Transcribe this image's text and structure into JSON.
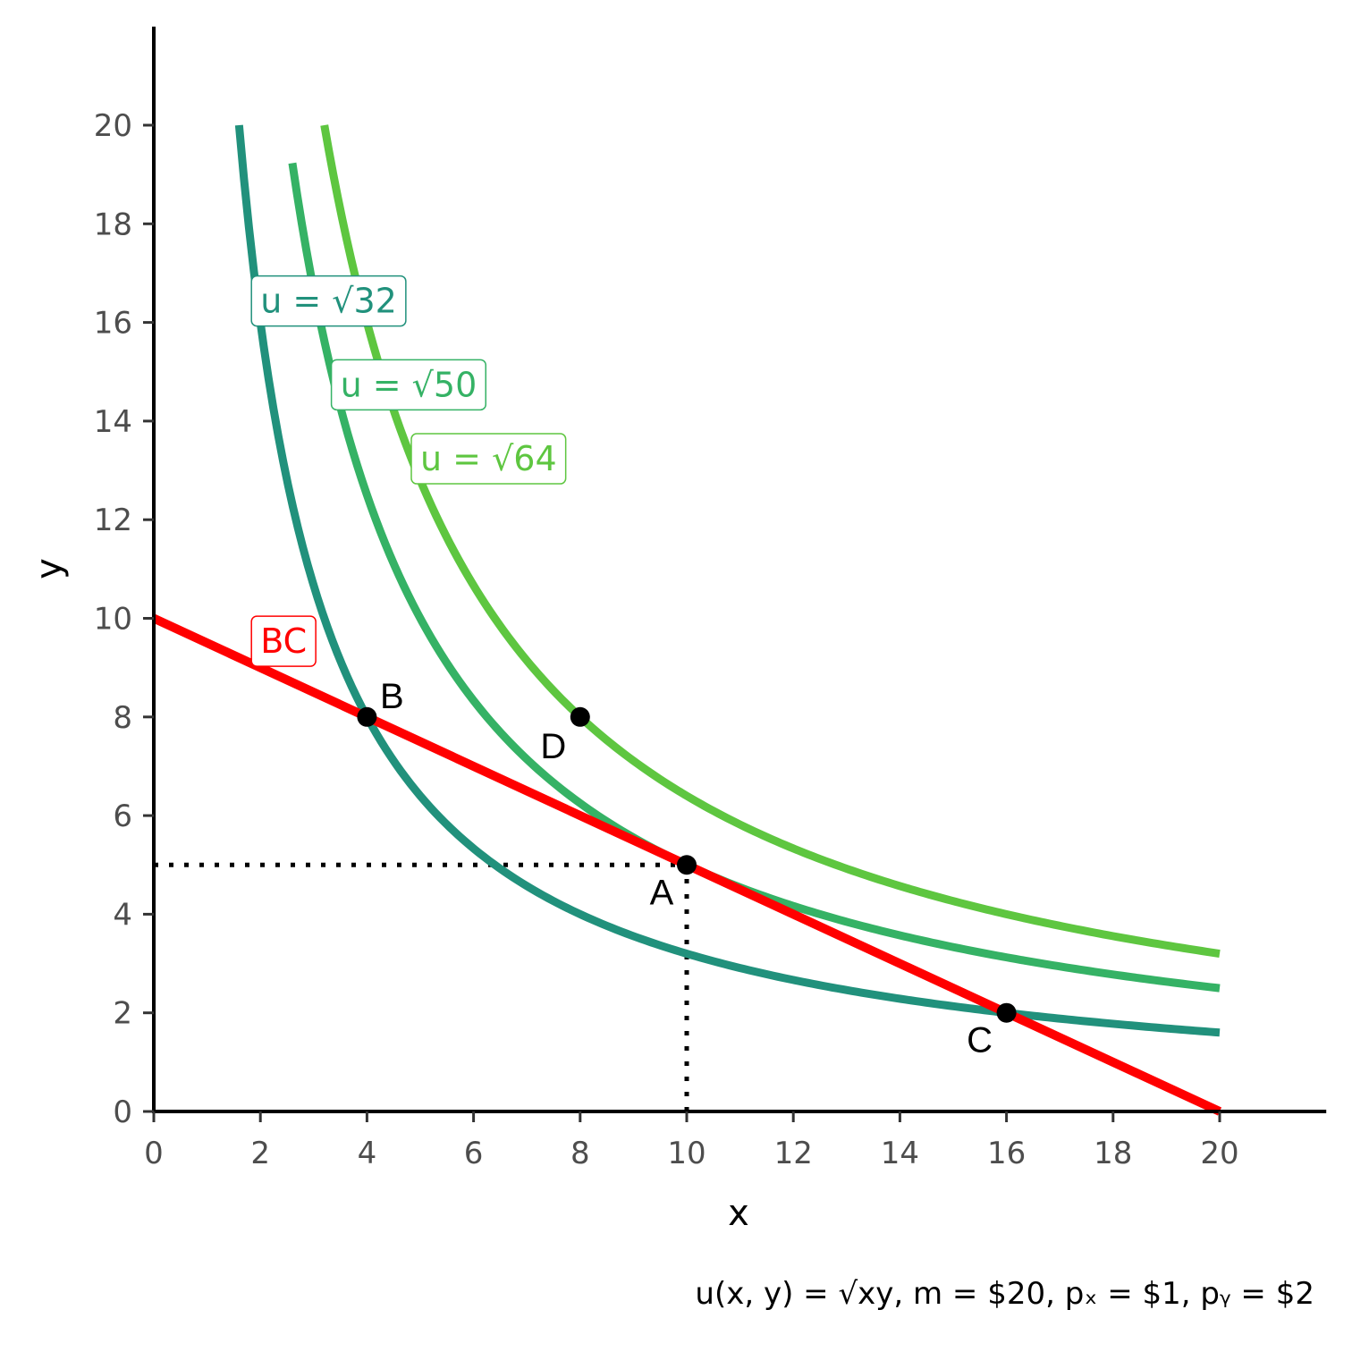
{
  "chart_data": {
    "type": "line",
    "title": "",
    "xlabel": "x",
    "ylabel": "y",
    "xlim": [
      0,
      22
    ],
    "ylim": [
      0,
      22
    ],
    "x_ticks": [
      0,
      2,
      4,
      6,
      8,
      10,
      12,
      14,
      16,
      18,
      20
    ],
    "y_ticks": [
      0,
      2,
      4,
      6,
      8,
      10,
      12,
      14,
      16,
      18,
      20
    ],
    "x_tick_labels": [
      "0",
      "2",
      "4",
      "6",
      "8",
      "10",
      "12",
      "14",
      "16",
      "18",
      "20"
    ],
    "y_tick_labels": [
      "0",
      "2",
      "4",
      "6",
      "8",
      "10",
      "12",
      "14",
      "16",
      "18",
      "20"
    ],
    "grid": false,
    "legend": "none",
    "caption": "u(x, y) = √xy, m = $20, pₓ = $1, pᵧ = $2",
    "indifference_curves": [
      {
        "label": "u = √32",
        "utility_squared": 32,
        "x_range": [
          1.6,
          20
        ],
        "color": "#21917c",
        "label_at": [
          2,
          16.2
        ]
      },
      {
        "label": "u = √50",
        "utility_squared": 50,
        "x_range": [
          2.6,
          20
        ],
        "color": "#35b265",
        "label_at": [
          3.5,
          14.5
        ]
      },
      {
        "label": "u = √64",
        "utility_squared": 64,
        "x_range": [
          3.2,
          20
        ],
        "color": "#5ec640",
        "label_at": [
          5,
          13
        ]
      }
    ],
    "budget_constraint": {
      "label": "BC",
      "color": "#ff0000",
      "points": [
        [
          0,
          10
        ],
        [
          20,
          0
        ]
      ],
      "label_at": [
        2,
        9.3
      ]
    },
    "points": [
      {
        "name": "A",
        "x": 10,
        "y": 5
      },
      {
        "name": "B",
        "x": 4,
        "y": 8
      },
      {
        "name": "C",
        "x": 16,
        "y": 2
      },
      {
        "name": "D",
        "x": 8,
        "y": 8
      }
    ],
    "reference_lines": [
      {
        "from": [
          0,
          5
        ],
        "to": [
          10,
          5
        ],
        "style": "dotted"
      },
      {
        "from": [
          10,
          0
        ],
        "to": [
          10,
          5
        ],
        "style": "dotted"
      }
    ]
  }
}
